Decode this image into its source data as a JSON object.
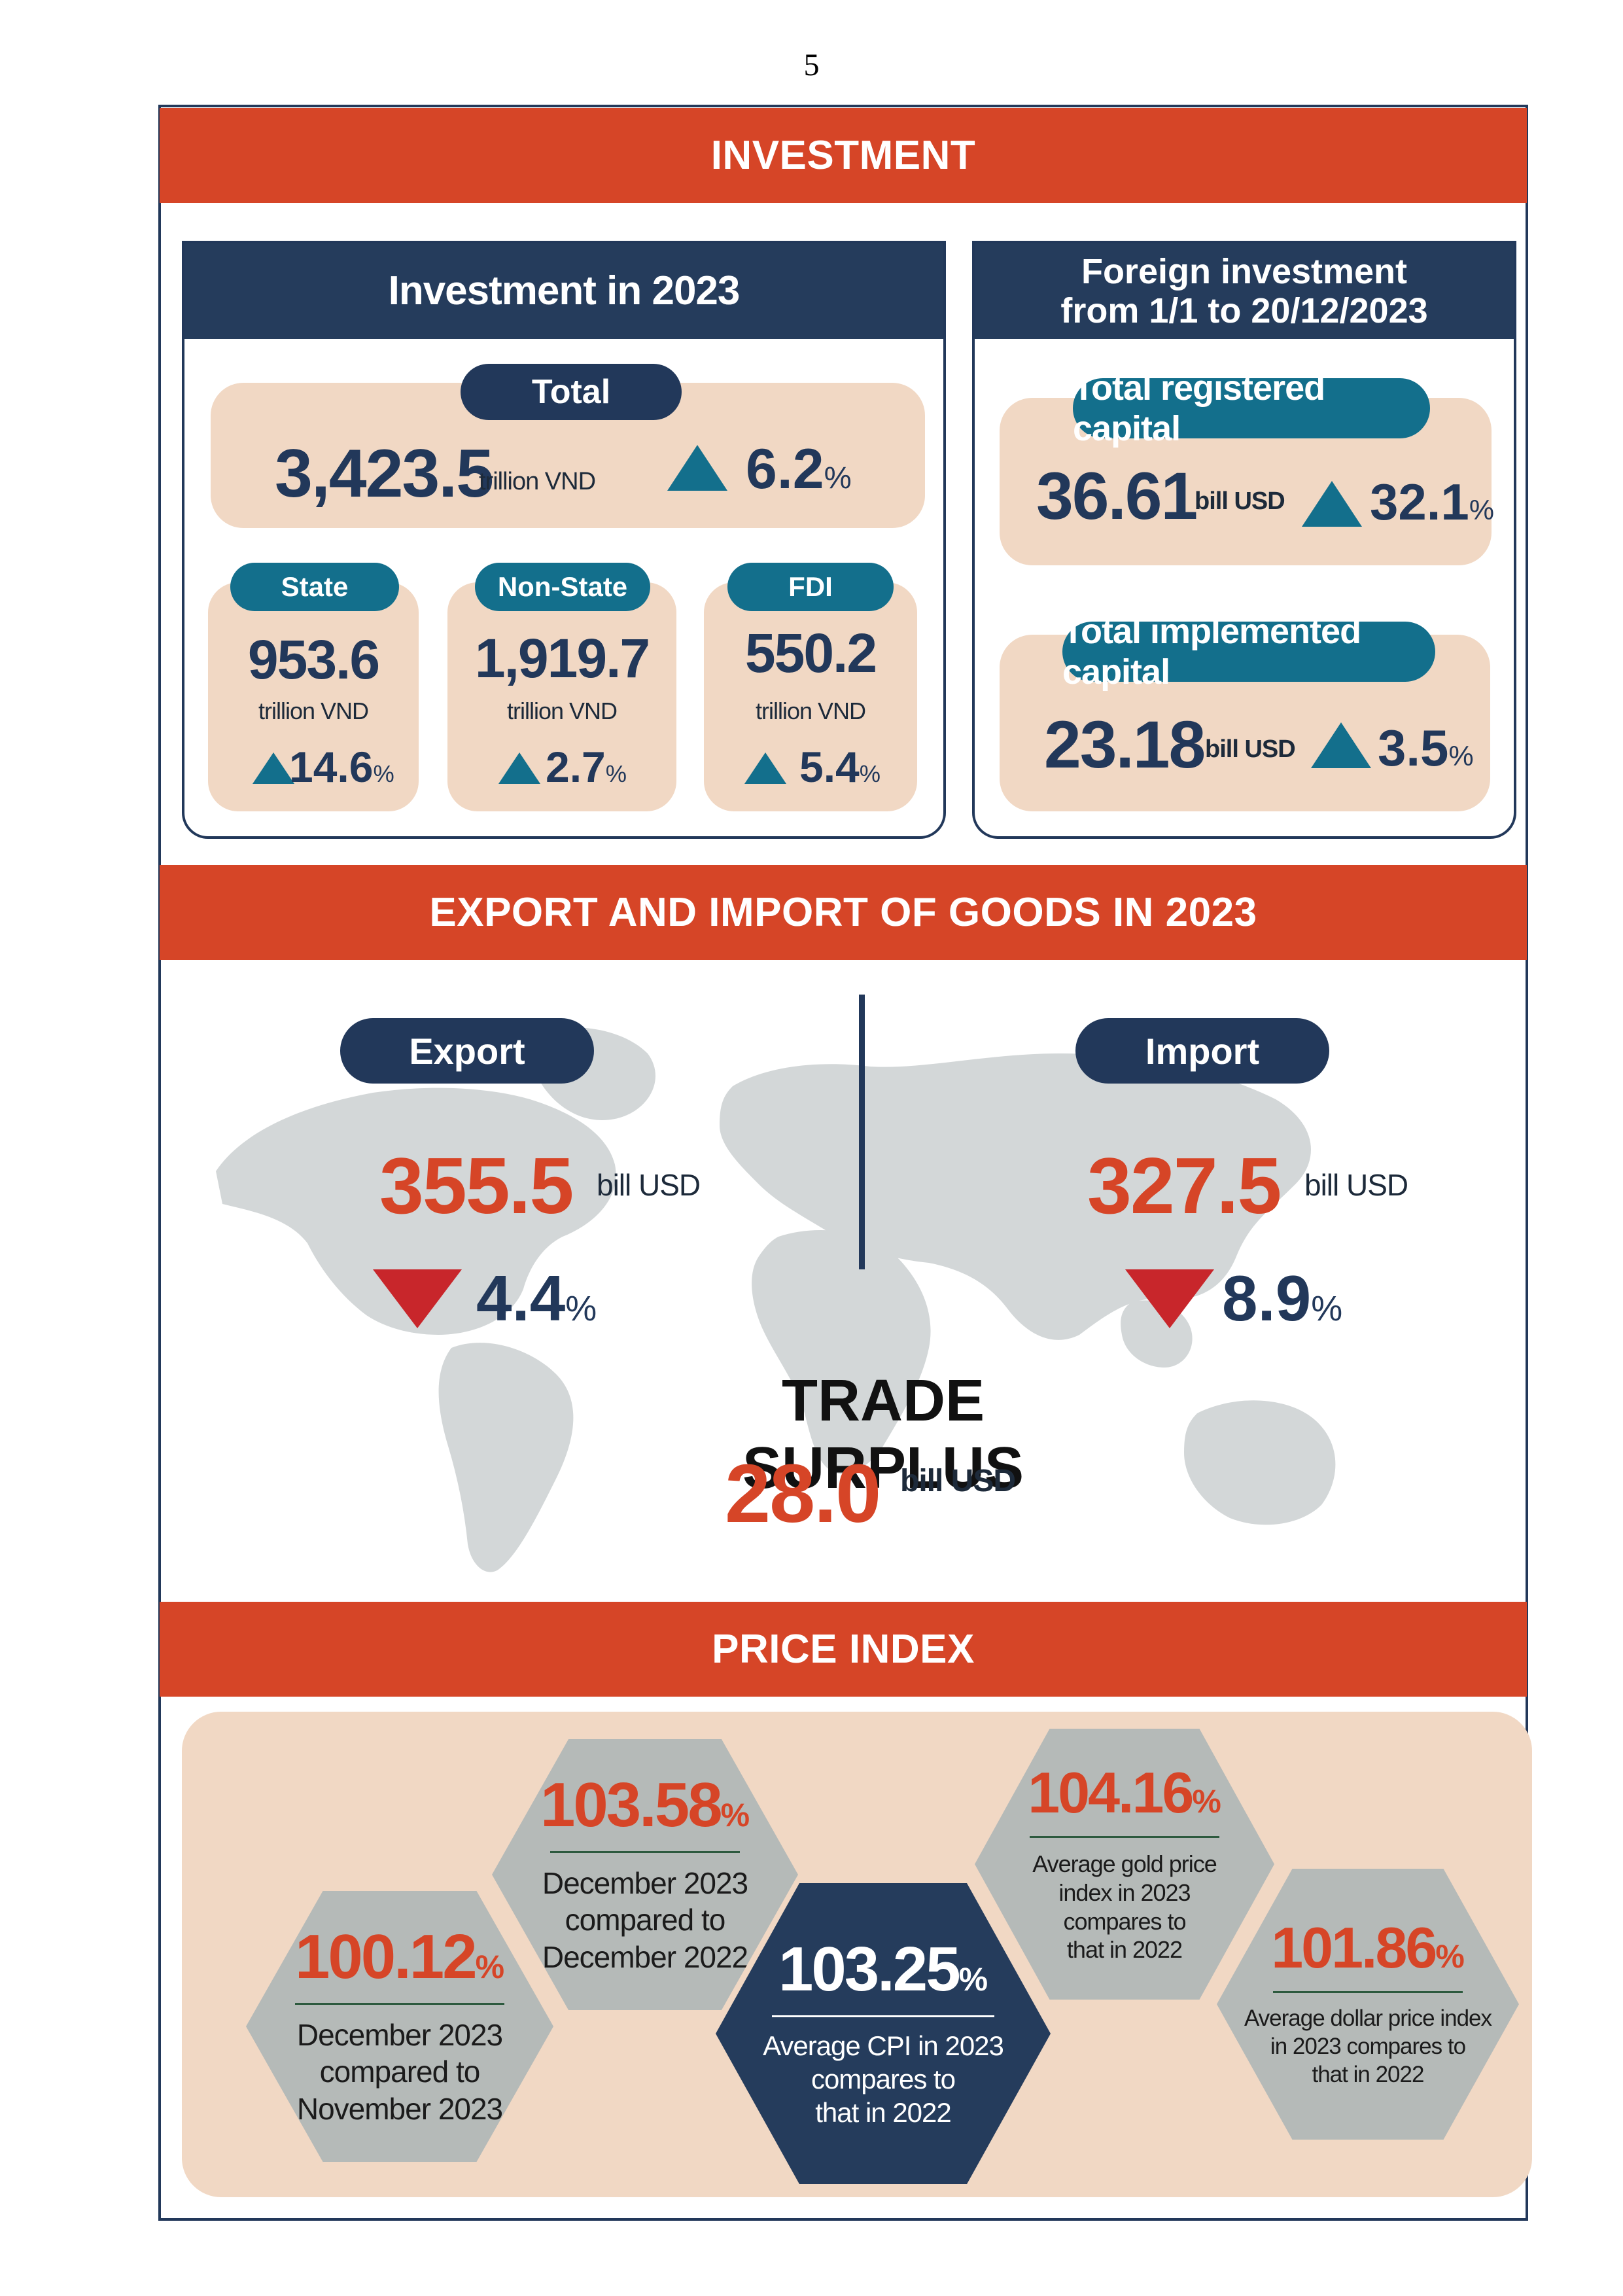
{
  "page_number": "5",
  "investment": {
    "banner": "INVESTMENT",
    "domestic": {
      "title": "Investment in 2023",
      "total": {
        "label": "Total",
        "value": "3,423.5",
        "unit": "trillion VND",
        "change": "6.2",
        "pct_sign": "%"
      },
      "state": {
        "label": "State",
        "value": "953.6",
        "unit": "trillion VND",
        "change": "14.6",
        "pct_sign": "%"
      },
      "non_state": {
        "label": "Non-State",
        "value": "1,919.7",
        "unit": "trillion VND",
        "change": "2.7",
        "pct_sign": "%"
      },
      "fdi": {
        "label": "FDI",
        "value": "550.2",
        "unit": "trillion VND",
        "change": "5.4",
        "pct_sign": "%"
      }
    },
    "foreign": {
      "title_line1": "Foreign investment",
      "title_line2": "from 1/1 to 20/12/2023",
      "registered": {
        "label": "Total registered capital",
        "value": "36.61",
        "unit": "bill USD",
        "change": "32.1",
        "pct_sign": "%"
      },
      "implemented": {
        "label": "Total implemented capital",
        "value": "23.18",
        "unit": "bill USD",
        "change": "3.5",
        "pct_sign": "%"
      }
    }
  },
  "trade": {
    "banner": "EXPORT AND IMPORT OF GOODS IN 2023",
    "export": {
      "label": "Export",
      "value": "355.5",
      "unit": "bill USD",
      "change": "4.4",
      "pct_sign": "%"
    },
    "import": {
      "label": "Import",
      "value": "327.5",
      "unit": "bill USD",
      "change": "8.9",
      "pct_sign": "%"
    },
    "surplus": {
      "label": "TRADE SURPLUS",
      "value": "28.0",
      "unit": "bill USD"
    }
  },
  "price_index": {
    "banner": "PRICE INDEX",
    "items": [
      {
        "value": "100.12",
        "pct_sign": "%",
        "desc": [
          "December 2023",
          "compared to",
          "November 2023"
        ]
      },
      {
        "value": "103.58",
        "pct_sign": "%",
        "desc": [
          "December 2023",
          "compared to",
          "December 2022"
        ]
      },
      {
        "value": "103.25",
        "pct_sign": "%",
        "desc": [
          "Average CPI in 2023",
          "compares to",
          "that in 2022"
        ]
      },
      {
        "value": "104.16",
        "pct_sign": "%",
        "desc": [
          "Average gold price",
          "index in 2023",
          "compares to",
          "that in 2022"
        ]
      },
      {
        "value": "101.86",
        "pct_sign": "%",
        "desc": [
          "Average dollar price index",
          "in 2023 compares to",
          "that in 2022"
        ]
      }
    ]
  },
  "colors": {
    "accent": "#d64527",
    "navy": "#253c5c",
    "teal": "#136f8c",
    "peach": "#f1d8c4",
    "hex_gray": "#b5bab8",
    "down": "#c8262b"
  }
}
